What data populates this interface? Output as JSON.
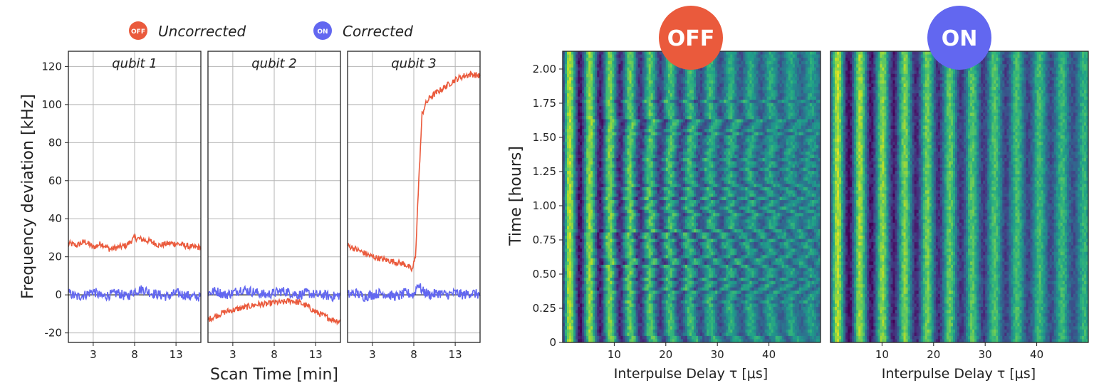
{
  "colors": {
    "off": "#ea5a3c",
    "on": "#6267f0"
  },
  "legend": {
    "off_badge": "OFF",
    "off_label": "Uncorrected",
    "on_badge": "ON",
    "on_label": "Corrected"
  },
  "maps": {
    "off_badge": "OFF",
    "on_badge": "ON"
  },
  "chart_data": [
    {
      "type": "line",
      "ylabel": "Frequency deviation [kHz]",
      "xlabel": "Scan Time [min]",
      "ylim": [
        -25,
        128
      ],
      "xlim": [
        0,
        16
      ],
      "yticks": [
        -20,
        0,
        20,
        40,
        60,
        80,
        100,
        120
      ],
      "yticklabels": [
        "-20",
        "0",
        "20",
        "40",
        "60",
        "80",
        "100",
        "120"
      ],
      "xticks": [
        3,
        8,
        13
      ],
      "xticklabels": [
        "3",
        "8",
        "13"
      ],
      "grid": true,
      "legend_position": "top-center",
      "panels": [
        {
          "title": "qubit 1",
          "series": [
            {
              "name": "Uncorrected",
              "x": [
                0,
                1,
                2,
                3,
                4,
                5,
                6,
                7,
                8,
                9,
                10,
                11,
                12,
                13,
                14,
                15,
                16
              ],
              "y": [
                27,
                26,
                28,
                25,
                27,
                24,
                25,
                26,
                30,
                29,
                28,
                26,
                27,
                27,
                26,
                25,
                25
              ]
            },
            {
              "name": "Corrected",
              "x": [
                0,
                1,
                2,
                3,
                4,
                5,
                6,
                7,
                8,
                9,
                10,
                11,
                12,
                13,
                14,
                15,
                16
              ],
              "y": [
                1,
                -1,
                0,
                2,
                -1,
                0,
                1,
                -1,
                2,
                3,
                1,
                0,
                -1,
                1,
                0,
                -1,
                -1
              ]
            }
          ]
        },
        {
          "title": "qubit 2",
          "series": [
            {
              "name": "Uncorrected",
              "x": [
                0,
                1,
                2,
                3,
                4,
                5,
                6,
                7,
                8,
                9,
                10,
                11,
                12,
                13,
                14,
                15,
                16
              ],
              "y": [
                -13,
                -11,
                -9,
                -8,
                -7,
                -6,
                -5,
                -5,
                -4,
                -4,
                -3,
                -4,
                -6,
                -9,
                -11,
                -13,
                -14
              ]
            },
            {
              "name": "Corrected",
              "x": [
                0,
                1,
                2,
                3,
                4,
                5,
                6,
                7,
                8,
                9,
                10,
                11,
                12,
                13,
                14,
                15,
                16
              ],
              "y": [
                1,
                2,
                0,
                1,
                3,
                2,
                1,
                0,
                1,
                2,
                1,
                0,
                1,
                0,
                0,
                -1,
                0
              ]
            }
          ]
        },
        {
          "title": "qubit 3",
          "series": [
            {
              "name": "Uncorrected",
              "x": [
                0,
                1,
                2,
                3,
                4,
                5,
                6,
                7,
                7.8,
                8.2,
                8.6,
                9,
                9.4,
                10,
                11,
                12,
                13,
                14,
                15,
                16
              ],
              "y": [
                26,
                24,
                22,
                20,
                19,
                18,
                17,
                16,
                13,
                20,
                60,
                95,
                100,
                104,
                107,
                110,
                113,
                115,
                116,
                115
              ]
            },
            {
              "name": "Corrected",
              "x": [
                0,
                1,
                2,
                3,
                4,
                5,
                6,
                7,
                8,
                8.5,
                9,
                10,
                11,
                12,
                13,
                14,
                15,
                16
              ],
              "y": [
                0,
                1,
                -1,
                0,
                1,
                0,
                -1,
                1,
                0,
                6,
                2,
                0,
                1,
                0,
                1,
                0,
                1,
                0
              ]
            }
          ]
        }
      ]
    },
    {
      "type": "heatmap",
      "title": "OFF",
      "xlabel": "Interpulse Delay τ [μs]",
      "ylabel": "Time [hours]",
      "xlim": [
        0,
        50
      ],
      "ylim": [
        0,
        2.13
      ],
      "xticks": [
        10,
        20,
        30,
        40
      ],
      "xticklabels": [
        "10",
        "20",
        "30",
        "40"
      ],
      "yticks": [
        0,
        0.25,
        0.5,
        0.75,
        1.0,
        1.25,
        1.5,
        1.75,
        2.0
      ],
      "yticklabels": [
        "0",
        "0.25",
        "0.50",
        "0.75",
        "1.00",
        "1.25",
        "1.50",
        "1.75",
        "2.00"
      ],
      "colormap": "viridis",
      "fringe_period_us": 3.9,
      "decay_us": 38
    },
    {
      "type": "heatmap",
      "title": "ON",
      "xlabel": "Interpulse Delay τ [μs]",
      "xlim": [
        0,
        50
      ],
      "ylim": [
        0,
        2.13
      ],
      "xticks": [
        10,
        20,
        30,
        40
      ],
      "xticklabels": [
        "10",
        "20",
        "30",
        "40"
      ],
      "colormap": "viridis",
      "fringe_period_us": 4.35,
      "decay_us": 60
    }
  ]
}
